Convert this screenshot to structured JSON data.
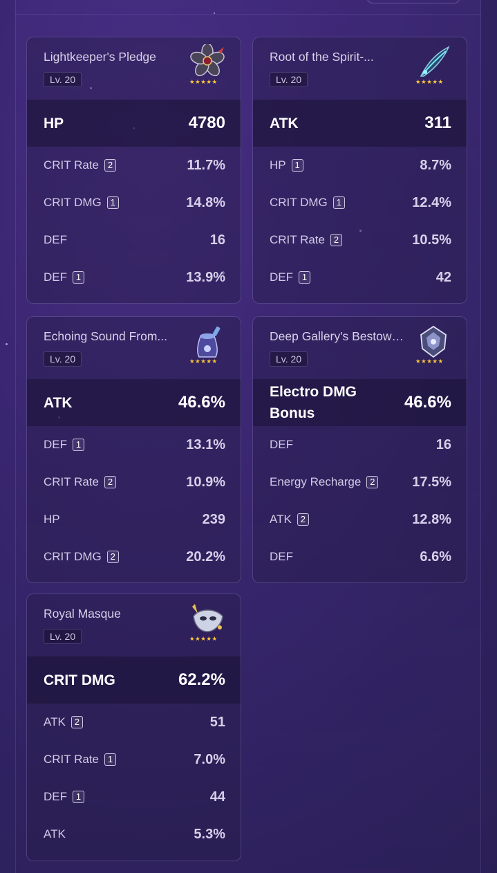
{
  "artifacts": [
    {
      "name": "Lightkeeper's Pledge",
      "level": "Lv. 20",
      "stars": "★★★★★",
      "icon": "flower-icon",
      "main": {
        "label": "HP",
        "value": "4780"
      },
      "subs": [
        {
          "label": "CRIT Rate",
          "rolls": "2",
          "value": "11.7%"
        },
        {
          "label": "CRIT DMG",
          "rolls": "1",
          "value": "14.8%"
        },
        {
          "label": "DEF",
          "rolls": "",
          "value": "16"
        },
        {
          "label": "DEF",
          "rolls": "1",
          "value": "13.9%"
        }
      ]
    },
    {
      "name": "Root of the Spirit-...",
      "level": "Lv. 20",
      "stars": "★★★★★",
      "icon": "feather-plume-icon",
      "main": {
        "label": "ATK",
        "value": "311"
      },
      "subs": [
        {
          "label": "HP",
          "rolls": "1",
          "value": "8.7%"
        },
        {
          "label": "CRIT DMG",
          "rolls": "1",
          "value": "12.4%"
        },
        {
          "label": "CRIT Rate",
          "rolls": "2",
          "value": "10.5%"
        },
        {
          "label": "DEF",
          "rolls": "1",
          "value": "42"
        }
      ]
    },
    {
      "name": "Echoing Sound From...",
      "level": "Lv. 20",
      "stars": "★★★★★",
      "icon": "hourglass-bell-icon",
      "main": {
        "label": "ATK",
        "value": "46.6%"
      },
      "subs": [
        {
          "label": "DEF",
          "rolls": "1",
          "value": "13.1%"
        },
        {
          "label": "CRIT Rate",
          "rolls": "2",
          "value": "10.9%"
        },
        {
          "label": "HP",
          "rolls": "",
          "value": "239"
        },
        {
          "label": "CRIT DMG",
          "rolls": "2",
          "value": "20.2%"
        }
      ]
    },
    {
      "name": "Deep Gallery's Bestowe...",
      "level": "Lv. 20",
      "stars": "★★★★★",
      "icon": "goblet-gem-icon",
      "main": {
        "label": "Electro DMG Bonus",
        "value": "46.6%"
      },
      "subs": [
        {
          "label": "DEF",
          "rolls": "",
          "value": "16"
        },
        {
          "label": "Energy Recharge",
          "rolls": "2",
          "value": "17.5%"
        },
        {
          "label": "ATK",
          "rolls": "2",
          "value": "12.8%"
        },
        {
          "label": "DEF",
          "rolls": "",
          "value": "6.6%"
        }
      ]
    },
    {
      "name": "Royal Masque",
      "level": "Lv. 20",
      "stars": "★★★★★",
      "icon": "masque-icon",
      "main": {
        "label": "CRIT DMG",
        "value": "62.2%"
      },
      "subs": [
        {
          "label": "ATK",
          "rolls": "2",
          "value": "51"
        },
        {
          "label": "CRIT Rate",
          "rolls": "1",
          "value": "7.0%"
        },
        {
          "label": "DEF",
          "rolls": "1",
          "value": "44"
        },
        {
          "label": "ATK",
          "rolls": "",
          "value": "5.3%"
        }
      ]
    }
  ]
}
